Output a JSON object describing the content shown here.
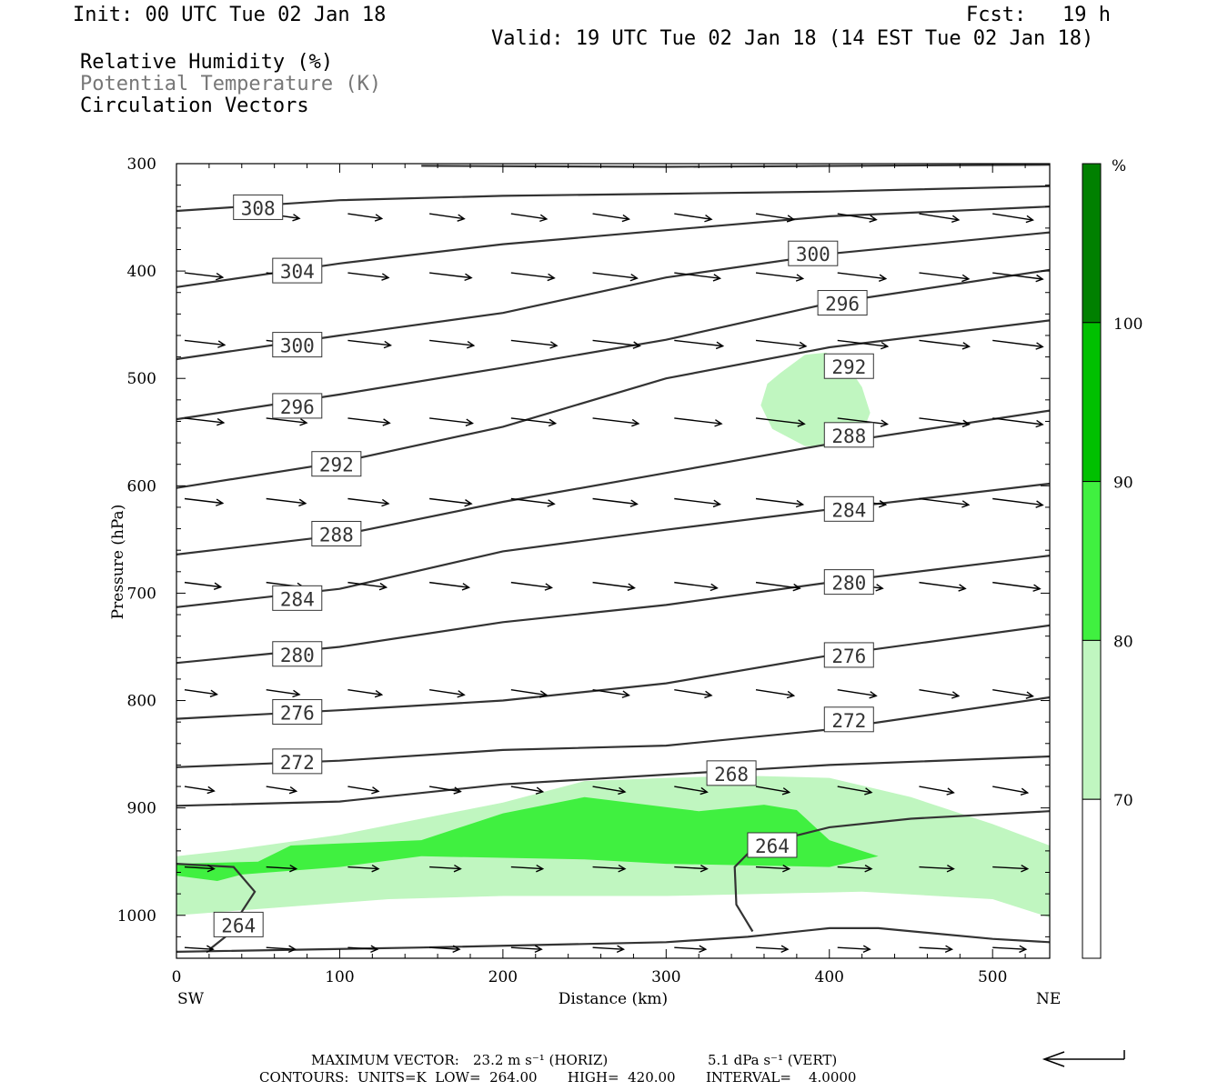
{
  "header": {
    "init": "Init: 00 UTC Tue 02 Jan 18",
    "fcst_label": "Fcst:",
    "fcst_value": "19 h",
    "valid": "Valid: 19 UTC Tue 02 Jan 18 (14 EST Tue 02 Jan 18)",
    "legend_lines": [
      "Relative Humidity (%)",
      "Potential Temperature (K)",
      "Circulation Vectors"
    ]
  },
  "colors": {
    "rh_70": "#c0f6c0",
    "rh_80": "#40f040",
    "rh_90": "#00c000",
    "rh_100": "#008000",
    "theta_line": "#333333",
    "vectors": "#000000"
  },
  "chart_data": {
    "type": "cross-section",
    "xlabel": "Distance (km)",
    "ylabel": "Pressure (hPa)",
    "xlim": [
      0,
      535
    ],
    "ylim": [
      1040,
      300
    ],
    "x_ticks": [
      0,
      100,
      200,
      300,
      400,
      500
    ],
    "y_ticks": [
      300,
      400,
      500,
      600,
      700,
      800,
      900,
      1000
    ],
    "left_end": "SW",
    "right_end": "NE",
    "colorbar": {
      "unit": "%",
      "levels": [
        70,
        80,
        90,
        100
      ],
      "colors": [
        "#ffffff",
        "#c0f6c0",
        "#40f040",
        "#00c000",
        "#008000"
      ]
    },
    "theta_contours": [
      {
        "value": 308,
        "points": [
          [
            0,
            344
          ],
          [
            100,
            334
          ],
          [
            200,
            330
          ],
          [
            300,
            328
          ],
          [
            400,
            326
          ],
          [
            535,
            321
          ]
        ],
        "label_at": [
          50,
          341
        ]
      },
      {
        "value": 304,
        "points": [
          [
            0,
            415
          ],
          [
            100,
            393
          ],
          [
            200,
            375
          ],
          [
            300,
            362
          ],
          [
            400,
            349
          ],
          [
            535,
            340
          ]
        ],
        "label_at": [
          74,
          400
        ]
      },
      {
        "value": 300,
        "points": [
          [
            0,
            482
          ],
          [
            100,
            460
          ],
          [
            200,
            439
          ],
          [
            300,
            406
          ],
          [
            400,
            384
          ],
          [
            535,
            364
          ]
        ],
        "label_at": [
          390,
          384
        ],
        "extra_labels": [
          [
            74,
            469
          ]
        ]
      },
      {
        "value": 296,
        "points": [
          [
            0,
            538
          ],
          [
            100,
            515
          ],
          [
            200,
            490
          ],
          [
            300,
            464
          ],
          [
            400,
            430
          ],
          [
            535,
            399
          ]
        ],
        "label_at": [
          408,
          430
        ],
        "extra_labels": [
          [
            74,
            526
          ]
        ]
      },
      {
        "value": 292,
        "points": [
          [
            0,
            602
          ],
          [
            100,
            578
          ],
          [
            200,
            545
          ],
          [
            300,
            500
          ],
          [
            400,
            471
          ],
          [
            535,
            446
          ]
        ],
        "label_at": [
          412,
          489
        ],
        "extra_labels": [
          [
            98,
            580
          ]
        ]
      },
      {
        "value": 288,
        "points": [
          [
            0,
            664
          ],
          [
            100,
            646
          ],
          [
            200,
            615
          ],
          [
            300,
            588
          ],
          [
            400,
            561
          ],
          [
            535,
            530
          ]
        ],
        "label_at": [
          412,
          553
        ],
        "extra_labels": [
          [
            98,
            645
          ]
        ]
      },
      {
        "value": 284,
        "points": [
          [
            0,
            713
          ],
          [
            100,
            696
          ],
          [
            200,
            661
          ],
          [
            300,
            641
          ],
          [
            400,
            622
          ],
          [
            535,
            598
          ]
        ],
        "label_at": [
          412,
          622
        ],
        "extra_labels": [
          [
            74,
            705
          ]
        ]
      },
      {
        "value": 280,
        "points": [
          [
            0,
            765
          ],
          [
            100,
            750
          ],
          [
            200,
            727
          ],
          [
            300,
            711
          ],
          [
            400,
            690
          ],
          [
            535,
            665
          ]
        ],
        "label_at": [
          412,
          690
        ],
        "extra_labels": [
          [
            74,
            757
          ]
        ]
      },
      {
        "value": 276,
        "points": [
          [
            0,
            817
          ],
          [
            100,
            809
          ],
          [
            200,
            800
          ],
          [
            300,
            784
          ],
          [
            400,
            758
          ],
          [
            535,
            730
          ]
        ],
        "label_at": [
          412,
          758
        ],
        "extra_labels": [
          [
            74,
            811
          ]
        ]
      },
      {
        "value": 272,
        "points": [
          [
            0,
            862
          ],
          [
            100,
            856
          ],
          [
            200,
            846
          ],
          [
            300,
            842
          ],
          [
            400,
            827
          ],
          [
            535,
            797
          ]
        ],
        "label_at": [
          412,
          818
        ],
        "extra_labels": [
          [
            74,
            857
          ]
        ]
      },
      {
        "value": 268,
        "points": [
          [
            0,
            898
          ],
          [
            100,
            894
          ],
          [
            200,
            878
          ],
          [
            300,
            869
          ],
          [
            400,
            860
          ],
          [
            535,
            852
          ]
        ],
        "label_at": [
          340,
          868
        ]
      },
      {
        "value": 264,
        "points": [
          [
            0,
            952
          ],
          [
            35,
            955
          ],
          [
            48,
            978
          ],
          [
            30,
            1020
          ],
          [
            20,
            1032
          ]
        ],
        "label_at": [
          38,
          1009
        ],
        "extra_labels": [
          [
            365,
            935
          ]
        ]
      }
    ],
    "rh_regions": [
      {
        "level": 70,
        "description": "low-level moist layer"
      },
      {
        "level": 80,
        "description": "core"
      },
      {
        "level": 70,
        "description": "mid-level pocket near 400 km, 500-560 hPa"
      }
    ],
    "max_vector_label": "MAXIMUM VECTOR:",
    "max_vector_horiz": "23.2 m s⁻¹ (HORIZ)",
    "max_vector_vert": "5.1 dPa s⁻¹ (VERT)",
    "contours_line": "CONTOURS:  UNITS=K  LOW=  264.00       HIGH=  420.00       INTERVAL=    4.0000"
  }
}
